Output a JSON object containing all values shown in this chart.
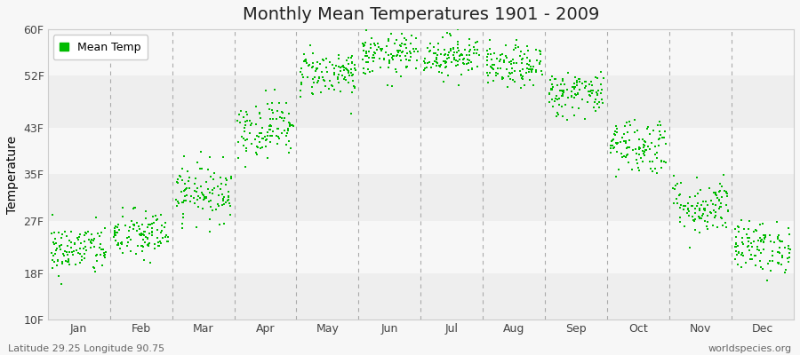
{
  "title": "Monthly Mean Temperatures 1901 - 2009",
  "ylabel": "Temperature",
  "xlabel_left": "Latitude 29.25 Longitude 90.75",
  "xlabel_right": "worldspecies.org",
  "yticks": [
    10,
    18,
    27,
    35,
    43,
    52,
    60
  ],
  "ytick_labels": [
    "10F",
    "18F",
    "27F",
    "35F",
    "43F",
    "52F",
    "60F"
  ],
  "ylim": [
    10,
    60
  ],
  "months": [
    "Jan",
    "Feb",
    "Mar",
    "Apr",
    "May",
    "Jun",
    "Jul",
    "Aug",
    "Sep",
    "Oct",
    "Nov",
    "Dec"
  ],
  "mean_temps_f": [
    22.0,
    24.5,
    32.0,
    43.0,
    52.5,
    55.5,
    55.5,
    53.5,
    49.0,
    40.0,
    29.5,
    22.5
  ],
  "std_temps_f": [
    2.2,
    2.2,
    2.5,
    2.5,
    2.0,
    1.8,
    1.8,
    1.8,
    2.0,
    2.5,
    2.5,
    2.2
  ],
  "dot_color": "#00bb00",
  "bg_color": "#f7f7f7",
  "band_color_dark": "#eeeeee",
  "band_color_light": "#f7f7f7",
  "n_years": 109,
  "title_fontsize": 14,
  "axis_fontsize": 10,
  "tick_fontsize": 9,
  "legend_fontsize": 9,
  "footer_fontsize": 8
}
